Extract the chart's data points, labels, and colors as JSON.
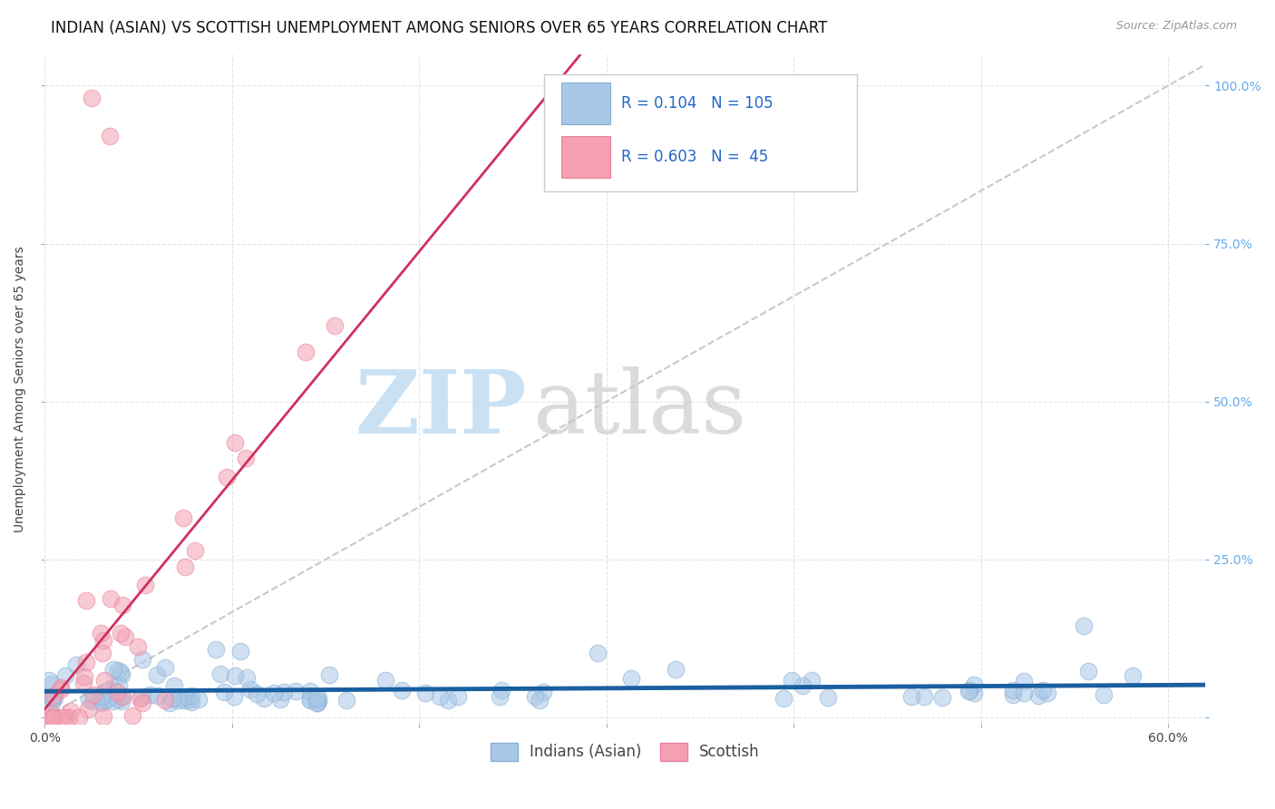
{
  "title": "INDIAN (ASIAN) VS SCOTTISH UNEMPLOYMENT AMONG SENIORS OVER 65 YEARS CORRELATION CHART",
  "source": "Source: ZipAtlas.com",
  "ylabel": "Unemployment Among Seniors over 65 years",
  "xlim": [
    0.0,
    0.62
  ],
  "ylim": [
    -0.01,
    1.05
  ],
  "xtick_positions": [
    0.0,
    0.1,
    0.2,
    0.3,
    0.4,
    0.5,
    0.6
  ],
  "xticklabels": [
    "0.0%",
    "",
    "",
    "",
    "",
    "",
    "60.0%"
  ],
  "ytick_positions": [
    0.0,
    0.25,
    0.5,
    0.75,
    1.0
  ],
  "yticklabels_right": [
    "",
    "25.0%",
    "50.0%",
    "75.0%",
    "100.0%"
  ],
  "indian_color": "#a8c8e8",
  "scottish_color": "#f4a0b0",
  "indian_edge_color": "#88aed0",
  "scottish_edge_color": "#e880a0",
  "indian_line_color": "#1a5fa0",
  "scottish_line_color": "#d03060",
  "diagonal_color": "#c8c8c8",
  "right_axis_color": "#66aaee",
  "R_indian": 0.104,
  "N_indian": 105,
  "R_scottish": 0.603,
  "N_scottish": 45,
  "legend_label_indian": "Indians (Asian)",
  "legend_label_scottish": "Scottish",
  "watermark_zip": "ZIP",
  "watermark_atlas": "atlas",
  "background_color": "#ffffff",
  "grid_color": "#e0e4e8",
  "title_fontsize": 12,
  "axis_label_fontsize": 10,
  "tick_fontsize": 10,
  "legend_fontsize": 12,
  "source_fontsize": 9
}
